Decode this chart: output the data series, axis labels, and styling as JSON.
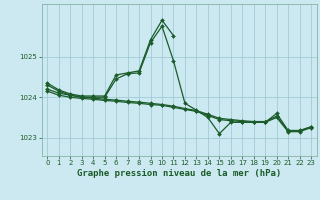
{
  "title": "Graphe pression niveau de la mer (hPa)",
  "bg_color": "#cce8f0",
  "grid_color": "#a0ccd8",
  "line_color": "#1a5c2a",
  "marker_color": "#1a5c2a",
  "xlim": [
    -0.5,
    23.5
  ],
  "ylim": [
    1022.55,
    1026.3
  ],
  "yticks": [
    1023,
    1024,
    1025
  ],
  "xticks": [
    0,
    1,
    2,
    3,
    4,
    5,
    6,
    7,
    8,
    9,
    10,
    11,
    12,
    13,
    14,
    15,
    16,
    17,
    18,
    19,
    20,
    21,
    22,
    23
  ],
  "series": [
    {
      "x": [
        0,
        1,
        2,
        3,
        4,
        5,
        6,
        7,
        8,
        9,
        10,
        11,
        12,
        13,
        14,
        15,
        16,
        17,
        18,
        19,
        20,
        21,
        22,
        23
      ],
      "y": [
        1024.15,
        1024.05,
        1024.0,
        1023.97,
        1023.95,
        1023.92,
        1023.9,
        1023.87,
        1023.85,
        1023.82,
        1023.8,
        1023.75,
        1023.7,
        1023.65,
        1023.55,
        1023.45,
        1023.42,
        1023.4,
        1023.38,
        1023.38,
        1023.5,
        1023.15,
        1023.15,
        1023.25
      ]
    },
    {
      "x": [
        0,
        1,
        2,
        3,
        4,
        5,
        6,
        7,
        8,
        9,
        10,
        11,
        12,
        13,
        14,
        15,
        16,
        17,
        18,
        19,
        20,
        21,
        22,
        23
      ],
      "y": [
        1024.2,
        1024.1,
        1024.05,
        1024.0,
        1023.98,
        1023.95,
        1023.93,
        1023.9,
        1023.88,
        1023.85,
        1023.82,
        1023.78,
        1023.72,
        1023.67,
        1023.58,
        1023.48,
        1023.45,
        1023.42,
        1023.4,
        1023.4,
        1023.53,
        1023.17,
        1023.17,
        1023.27
      ]
    },
    {
      "x": [
        0,
        1,
        2,
        3,
        4,
        5,
        6,
        7,
        8,
        9,
        10,
        11,
        12,
        13,
        14,
        15,
        16,
        17,
        18,
        19,
        20,
        21,
        22,
        23
      ],
      "y": [
        1024.3,
        1024.15,
        1024.05,
        1024.0,
        1024.0,
        1024.0,
        1024.45,
        1024.58,
        1024.6,
        1025.35,
        1025.75,
        1024.9,
        1023.85,
        1023.68,
        1023.5,
        1023.1,
        1023.38,
        1023.38,
        1023.38,
        1023.38,
        1023.6,
        1023.18,
        1023.18,
        1023.27
      ]
    },
    {
      "x": [
        0,
        1,
        2,
        3,
        4,
        5,
        6,
        7,
        8,
        9,
        10,
        11
      ],
      "y": [
        1024.35,
        1024.18,
        1024.08,
        1024.03,
        1024.03,
        1024.03,
        1024.55,
        1024.6,
        1024.65,
        1025.42,
        1025.9,
        1025.52
      ]
    }
  ],
  "marker_size": 2.0,
  "linewidth": 0.9,
  "tick_fontsize": 5.0,
  "label_fontsize": 6.5,
  "label_fontweight": "bold"
}
